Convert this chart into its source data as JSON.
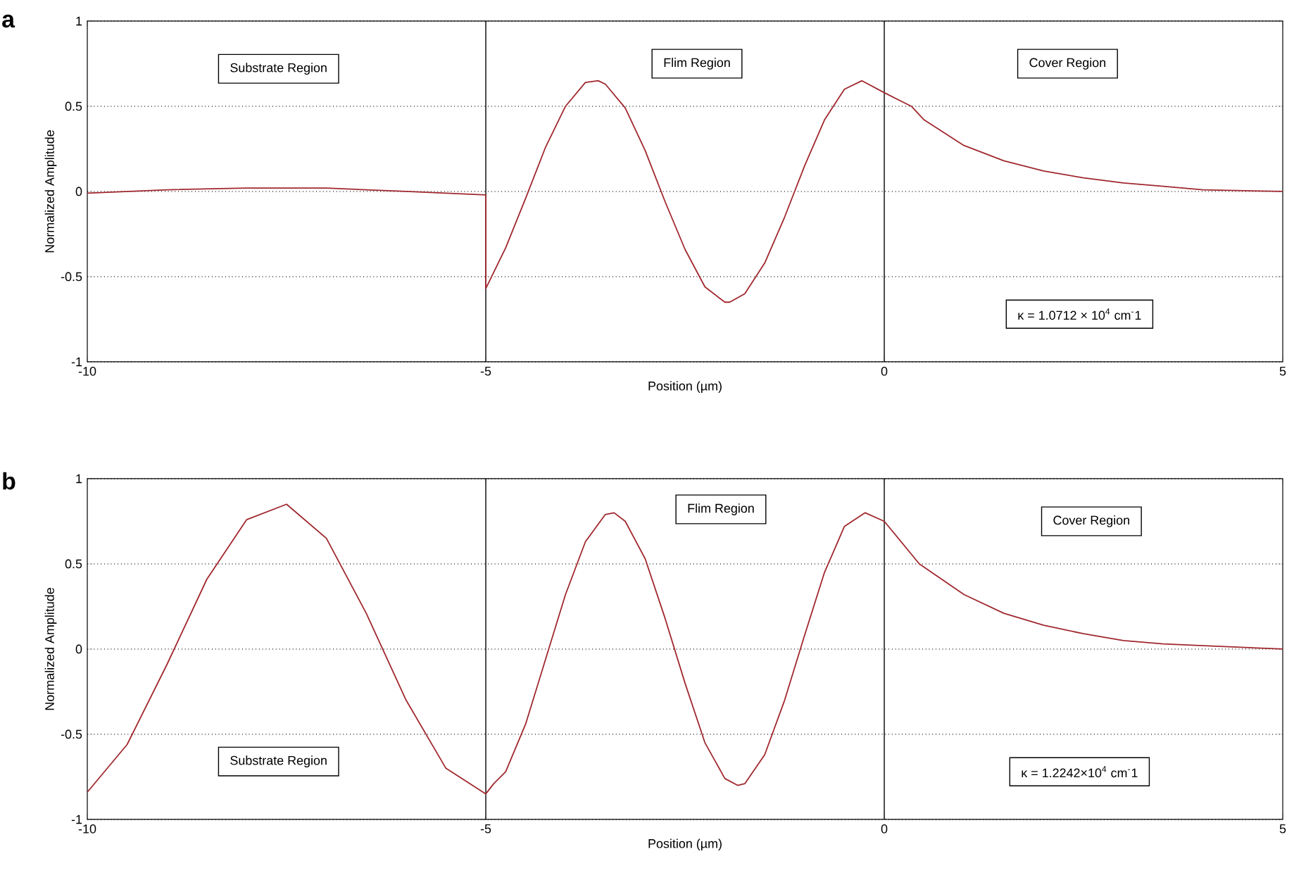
{
  "chart_data": [
    {
      "type": "line",
      "title": "a",
      "xlabel": "Position (µm)",
      "ylabel": "Normalized Amplitude",
      "xlim": [
        -10,
        5
      ],
      "xticks": [
        -10,
        -5,
        0,
        5
      ],
      "ylim": [
        -1,
        1
      ],
      "yticks": [
        -1,
        -0.5,
        0,
        0.5,
        1
      ],
      "grid": "y",
      "series": [
        {
          "color": "#a0282e",
          "x": [
            -10,
            -9,
            -8,
            -7,
            -6,
            -5,
            -5,
            -4.75,
            -4.5,
            -4.25,
            -4,
            -3.75,
            -3.59,
            -3.5,
            -3.25,
            -3,
            -2.75,
            -2.5,
            -2.25,
            -2,
            -1.94,
            -1.75,
            -1.5,
            -1.25,
            -1,
            -0.75,
            -0.5,
            -0.28,
            0,
            0.34,
            0.5,
            1,
            1.5,
            2,
            2.5,
            3,
            3.5,
            4,
            5
          ],
          "values": [
            -0.01,
            0.01,
            0.02,
            0.02,
            0,
            -0.02,
            -0.57,
            -0.33,
            -0.04,
            0.26,
            0.5,
            0.64,
            0.65,
            0.63,
            0.49,
            0.24,
            -0.06,
            -0.34,
            -0.56,
            -0.65,
            -0.65,
            -0.6,
            -0.42,
            -0.15,
            0.15,
            0.42,
            0.6,
            0.65,
            0.58,
            0.5,
            0.42,
            0.27,
            0.18,
            0.12,
            0.08,
            0.05,
            0.03,
            0.01,
            0
          ]
        }
      ],
      "ref_lines": [
        {
          "axis": "x",
          "value": -5,
          "color": "#000000"
        },
        {
          "axis": "x",
          "value": 0,
          "color": "#000000"
        }
      ],
      "annotations": [
        "Substrate Region",
        "Flim Region",
        "Cover Region",
        "κ = 1.0712 × 10$^{4}$ cm$^{-}$1"
      ]
    },
    {
      "type": "line",
      "title": "b",
      "xlabel": "Position (µm)",
      "ylabel": "Normalized Amplitude",
      "xlim": [
        -10,
        5
      ],
      "xticks": [
        -10,
        -5,
        0,
        5
      ],
      "ylim": [
        -1,
        1
      ],
      "yticks": [
        -1,
        -0.5,
        0,
        0.5,
        1
      ],
      "grid": "y",
      "series": [
        {
          "color": "#a0282e",
          "x": [
            -10,
            -9.5,
            -9,
            -8.5,
            -8,
            -7.5,
            -7,
            -6.5,
            -6,
            -5.5,
            -5,
            -4.9,
            -4.75,
            -4.5,
            -4.25,
            -4,
            -3.75,
            -3.5,
            -3.39,
            -3.25,
            -3,
            -2.75,
            -2.5,
            -2.25,
            -2,
            -1.84,
            -1.75,
            -1.5,
            -1.25,
            -1,
            -0.75,
            -0.5,
            -0.24,
            0,
            0.44,
            1,
            1.5,
            2,
            2.5,
            3,
            3.5,
            4,
            5
          ],
          "values": [
            -0.84,
            -0.56,
            -0.09,
            0.41,
            0.76,
            0.85,
            0.65,
            0.21,
            -0.3,
            -0.7,
            -0.85,
            -0.79,
            -0.72,
            -0.44,
            -0.06,
            0.32,
            0.63,
            0.79,
            0.8,
            0.75,
            0.53,
            0.18,
            -0.2,
            -0.55,
            -0.76,
            -0.8,
            -0.79,
            -0.62,
            -0.3,
            0.08,
            0.45,
            0.72,
            0.8,
            0.75,
            0.5,
            0.32,
            0.21,
            0.14,
            0.09,
            0.05,
            0.03,
            0.02,
            0
          ]
        }
      ],
      "ref_lines": [
        {
          "axis": "x",
          "value": -5,
          "color": "#000000"
        },
        {
          "axis": "x",
          "value": 0,
          "color": "#000000"
        }
      ],
      "annotations": [
        "Substrate Region",
        "Flim Region",
        "Cover Region",
        "κ = 1.2242×10$^{4}$ cm$^{-}$1"
      ]
    }
  ]
}
